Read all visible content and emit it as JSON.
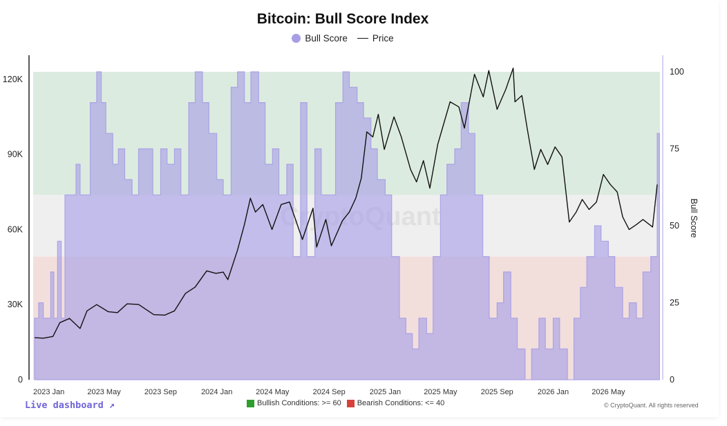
{
  "chart_data": {
    "type": "line",
    "title": "Bitcoin: Bull Score Index",
    "legend": [
      "Bull Score",
      "Price"
    ],
    "legend_placement": "top-center",
    "x_tick_labels": [
      "2023 Jan",
      "2023 May",
      "2023 Sep",
      "2024 Jan",
      "2024 May",
      "2024 Sep",
      "2025 Jan",
      "2025 May",
      "2025 Sep",
      "2026 Jan",
      "2026 May"
    ],
    "y_left_ticks": [
      "0",
      "30K",
      "60K",
      "90K",
      "120K"
    ],
    "y_left_range": [
      0,
      123000
    ],
    "y_right_ticks": [
      "0",
      "25",
      "50",
      "75",
      "100"
    ],
    "y_right_label": "Bull Score",
    "y_right_range": [
      0,
      100
    ],
    "bands": [
      {
        "name": "bullish",
        "from": 60,
        "to": 100,
        "color": "#dcebdf"
      },
      {
        "name": "neutral",
        "from": 40,
        "to": 60,
        "color": "#efefef"
      },
      {
        "name": "bearish",
        "from": 0,
        "to": 40,
        "color": "#f2dfdc"
      }
    ],
    "series": [
      {
        "name": "Bull Score",
        "axis": "right",
        "color": "#a79ee6",
        "points": [
          [
            "2022-12-01",
            20
          ],
          [
            "2022-12-10",
            25
          ],
          [
            "2022-12-20",
            20
          ],
          [
            "2023-01-05",
            35
          ],
          [
            "2023-01-12",
            20
          ],
          [
            "2023-01-20",
            45
          ],
          [
            "2023-01-28",
            20
          ],
          [
            "2023-02-05",
            60
          ],
          [
            "2023-02-20",
            60
          ],
          [
            "2023-03-01",
            70
          ],
          [
            "2023-03-10",
            60
          ],
          [
            "2023-03-20",
            60
          ],
          [
            "2023-04-01",
            90
          ],
          [
            "2023-04-15",
            100
          ],
          [
            "2023-04-25",
            90
          ],
          [
            "2023-05-05",
            80
          ],
          [
            "2023-05-20",
            70
          ],
          [
            "2023-06-01",
            75
          ],
          [
            "2023-06-15",
            65
          ],
          [
            "2023-07-01",
            60
          ],
          [
            "2023-07-15",
            75
          ],
          [
            "2023-08-01",
            75
          ],
          [
            "2023-08-15",
            60
          ],
          [
            "2023-09-01",
            75
          ],
          [
            "2023-09-15",
            70
          ],
          [
            "2023-10-01",
            75
          ],
          [
            "2023-10-15",
            60
          ],
          [
            "2023-11-01",
            90
          ],
          [
            "2023-11-15",
            100
          ],
          [
            "2023-12-01",
            90
          ],
          [
            "2023-12-15",
            80
          ],
          [
            "2024-01-01",
            65
          ],
          [
            "2024-01-15",
            60
          ],
          [
            "2024-02-01",
            95
          ],
          [
            "2024-02-15",
            100
          ],
          [
            "2024-03-01",
            90
          ],
          [
            "2024-03-15",
            100
          ],
          [
            "2024-04-01",
            90
          ],
          [
            "2024-04-15",
            70
          ],
          [
            "2024-05-01",
            75
          ],
          [
            "2024-05-15",
            60
          ],
          [
            "2024-06-01",
            70
          ],
          [
            "2024-06-15",
            40
          ],
          [
            "2024-07-01",
            90
          ],
          [
            "2024-07-15",
            40
          ],
          [
            "2024-08-01",
            75
          ],
          [
            "2024-08-15",
            60
          ],
          [
            "2024-09-01",
            60
          ],
          [
            "2024-09-15",
            90
          ],
          [
            "2024-10-01",
            100
          ],
          [
            "2024-10-15",
            95
          ],
          [
            "2024-11-01",
            90
          ],
          [
            "2024-11-15",
            85
          ],
          [
            "2024-12-01",
            75
          ],
          [
            "2024-12-15",
            65
          ],
          [
            "2025-01-01",
            60
          ],
          [
            "2025-01-15",
            40
          ],
          [
            "2025-02-01",
            20
          ],
          [
            "2025-02-15",
            15
          ],
          [
            "2025-03-01",
            10
          ],
          [
            "2025-03-15",
            20
          ],
          [
            "2025-04-01",
            15
          ],
          [
            "2025-04-15",
            40
          ],
          [
            "2025-05-01",
            60
          ],
          [
            "2025-05-15",
            70
          ],
          [
            "2025-06-01",
            75
          ],
          [
            "2025-06-15",
            90
          ],
          [
            "2025-07-01",
            80
          ],
          [
            "2025-07-15",
            60
          ],
          [
            "2025-08-01",
            40
          ],
          [
            "2025-08-15",
            20
          ],
          [
            "2025-09-01",
            25
          ],
          [
            "2025-09-15",
            35
          ],
          [
            "2025-10-01",
            20
          ],
          [
            "2025-10-15",
            10
          ],
          [
            "2025-11-01",
            0
          ],
          [
            "2025-11-15",
            10
          ],
          [
            "2025-12-01",
            20
          ],
          [
            "2025-12-15",
            10
          ],
          [
            "2026-01-01",
            20
          ],
          [
            "2026-01-15",
            10
          ],
          [
            "2026-02-01",
            0
          ],
          [
            "2026-02-15",
            20
          ],
          [
            "2026-03-01",
            30
          ],
          [
            "2026-03-15",
            40
          ],
          [
            "2026-04-01",
            50
          ],
          [
            "2026-04-15",
            45
          ],
          [
            "2026-05-01",
            40
          ],
          [
            "2026-05-15",
            30
          ],
          [
            "2026-06-01",
            20
          ],
          [
            "2026-06-15",
            25
          ],
          [
            "2026-07-01",
            20
          ],
          [
            "2026-07-15",
            35
          ],
          [
            "2026-08-01",
            40
          ],
          [
            "2026-08-15",
            80
          ],
          [
            "2026-08-20",
            55
          ]
        ]
      },
      {
        "name": "Price",
        "axis": "left",
        "color": "#111111",
        "points": [
          [
            "2022-12-01",
            16800
          ],
          [
            "2022-12-20",
            16600
          ],
          [
            "2023-01-10",
            17300
          ],
          [
            "2023-01-25",
            22800
          ],
          [
            "2023-02-15",
            24500
          ],
          [
            "2023-03-10",
            20500
          ],
          [
            "2023-03-25",
            27500
          ],
          [
            "2023-04-15",
            30000
          ],
          [
            "2023-05-10",
            27200
          ],
          [
            "2023-05-30",
            26800
          ],
          [
            "2023-06-20",
            30300
          ],
          [
            "2023-07-15",
            30100
          ],
          [
            "2023-08-17",
            26000
          ],
          [
            "2023-09-10",
            25800
          ],
          [
            "2023-10-01",
            27500
          ],
          [
            "2023-10-25",
            34500
          ],
          [
            "2023-11-15",
            37000
          ],
          [
            "2023-12-10",
            43500
          ],
          [
            "2023-12-30",
            42500
          ],
          [
            "2024-01-15",
            43000
          ],
          [
            "2024-01-25",
            40000
          ],
          [
            "2024-02-15",
            51800
          ],
          [
            "2024-03-01",
            62000
          ],
          [
            "2024-03-14",
            72500
          ],
          [
            "2024-03-25",
            67000
          ],
          [
            "2024-04-10",
            70000
          ],
          [
            "2024-04-30",
            60000
          ],
          [
            "2024-05-20",
            70000
          ],
          [
            "2024-06-07",
            71000
          ],
          [
            "2024-07-05",
            56000
          ],
          [
            "2024-07-28",
            68500
          ],
          [
            "2024-08-05",
            53000
          ],
          [
            "2024-08-25",
            64000
          ],
          [
            "2024-09-06",
            53500
          ],
          [
            "2024-09-30",
            63500
          ],
          [
            "2024-10-15",
            67000
          ],
          [
            "2024-10-29",
            72500
          ],
          [
            "2024-11-10",
            80500
          ],
          [
            "2024-11-22",
            99000
          ],
          [
            "2024-12-05",
            97000
          ],
          [
            "2024-12-17",
            106000
          ],
          [
            "2024-12-30",
            92000
          ],
          [
            "2025-01-20",
            105000
          ],
          [
            "2025-02-05",
            97000
          ],
          [
            "2025-02-25",
            84000
          ],
          [
            "2025-03-10",
            79000
          ],
          [
            "2025-03-25",
            87500
          ],
          [
            "2025-04-08",
            76500
          ],
          [
            "2025-04-25",
            94000
          ],
          [
            "2025-05-22",
            111000
          ],
          [
            "2025-06-10",
            109000
          ],
          [
            "2025-06-22",
            100500
          ],
          [
            "2025-07-14",
            122000
          ],
          [
            "2025-08-02",
            113000
          ],
          [
            "2025-08-14",
            123500
          ],
          [
            "2025-09-01",
            108000
          ],
          [
            "2025-09-20",
            116000
          ],
          [
            "2025-10-06",
            124500
          ],
          [
            "2025-10-10",
            111000
          ],
          [
            "2025-10-25",
            113500
          ],
          [
            "2025-11-05",
            101000
          ],
          [
            "2025-11-21",
            84000
          ],
          [
            "2025-12-05",
            92000
          ],
          [
            "2025-12-20",
            86000
          ],
          [
            "2026-01-05",
            93000
          ],
          [
            "2026-01-20",
            89000
          ],
          [
            "2026-02-05",
            63000
          ],
          [
            "2026-02-20",
            67000
          ],
          [
            "2026-03-05",
            72000
          ],
          [
            "2026-03-20",
            68000
          ],
          [
            "2026-04-05",
            71000
          ],
          [
            "2026-04-20",
            82000
          ],
          [
            "2026-05-05",
            78000
          ],
          [
            "2026-05-20",
            75000
          ],
          [
            "2026-06-01",
            65000
          ],
          [
            "2026-06-15",
            60000
          ],
          [
            "2026-07-01",
            62000
          ],
          [
            "2026-07-15",
            64000
          ],
          [
            "2026-08-05",
            61000
          ],
          [
            "2026-08-15",
            78000
          ]
        ]
      }
    ]
  },
  "ui": {
    "live_dashboard": "Live dashboard ↗",
    "conditions": {
      "bullish": "Bullish Conditions: >= 60",
      "bearish": "Bearish Conditions: <= 40",
      "bullish_color": "#2e9e2e",
      "bearish_color": "#d8413a"
    },
    "copyright": "© CryptoQuant. All rights reserved",
    "watermark": "CryptoQuant"
  }
}
